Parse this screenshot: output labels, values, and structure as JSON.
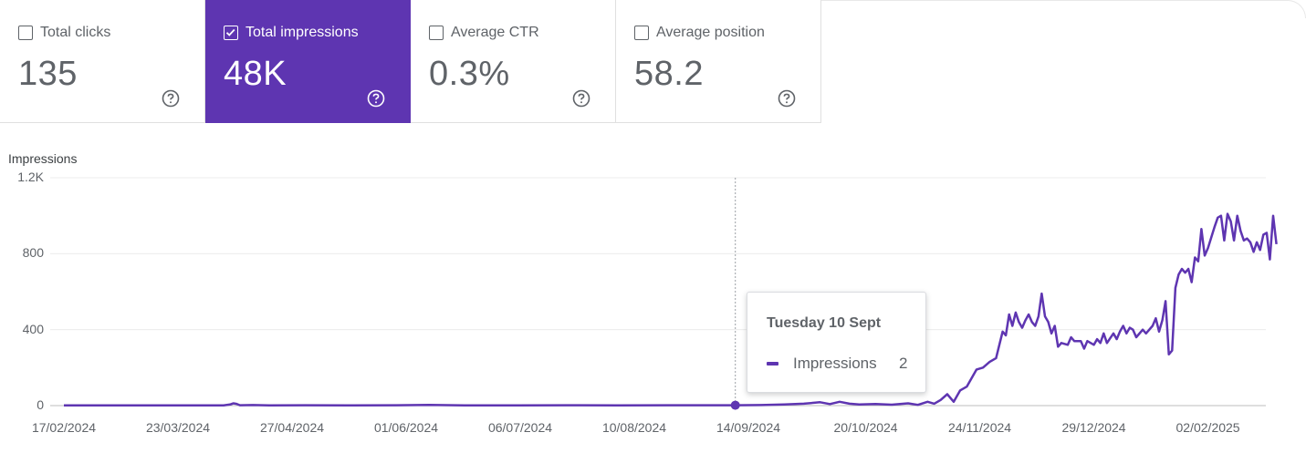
{
  "metrics": [
    {
      "label": "Total clicks",
      "value": "135",
      "checked": false
    },
    {
      "label": "Total impressions",
      "value": "48K",
      "checked": true
    },
    {
      "label": "Average CTR",
      "value": "0.3%",
      "checked": false
    },
    {
      "label": "Average position",
      "value": "58.2",
      "checked": false
    }
  ],
  "icons": {
    "checkbox": "checkbox-icon",
    "checked": "check-icon",
    "help": "help-circle-icon"
  },
  "colors": {
    "accent": "#5e35b1",
    "text": "#5f6368",
    "grid": "#e8e8e8"
  },
  "tooltip": {
    "date": "Tuesday 10 Sept",
    "series": "Impressions",
    "value": "2"
  },
  "chart_data": {
    "type": "line",
    "ylabel": "Impressions",
    "ylim": [
      0,
      1200
    ],
    "yticks": [
      "0",
      "400",
      "800",
      "1.2K"
    ],
    "xticks": [
      "17/02/2024",
      "23/03/2024",
      "27/04/2024",
      "01/06/2024",
      "06/07/2024",
      "10/08/2024",
      "14/09/2024",
      "20/10/2024",
      "24/11/2024",
      "29/12/2024",
      "02/02/2025"
    ],
    "grid": true,
    "start_date": "17/02/2024",
    "highlight_date": "10/09/2024",
    "series": [
      {
        "name": "Impressions",
        "points": [
          [
            "17/02/2024",
            1
          ],
          [
            "01/03/2024",
            1
          ],
          [
            "15/03/2024",
            1
          ],
          [
            "29/03/2024",
            1
          ],
          [
            "06/04/2024",
            1
          ],
          [
            "08/04/2024",
            6
          ],
          [
            "09/04/2024",
            12
          ],
          [
            "10/04/2024",
            9
          ],
          [
            "11/04/2024",
            2
          ],
          [
            "15/04/2024",
            3
          ],
          [
            "20/04/2024",
            1
          ],
          [
            "01/05/2024",
            2
          ],
          [
            "15/05/2024",
            1
          ],
          [
            "29/05/2024",
            2
          ],
          [
            "08/06/2024",
            4
          ],
          [
            "20/06/2024",
            1
          ],
          [
            "05/07/2024",
            1
          ],
          [
            "20/07/2024",
            2
          ],
          [
            "05/08/2024",
            1
          ],
          [
            "20/08/2024",
            2
          ],
          [
            "01/09/2024",
            2
          ],
          [
            "10/09/2024",
            2
          ],
          [
            "18/09/2024",
            3
          ],
          [
            "25/09/2024",
            6
          ],
          [
            "01/10/2024",
            10
          ],
          [
            "06/10/2024",
            18
          ],
          [
            "09/10/2024",
            8
          ],
          [
            "12/10/2024",
            20
          ],
          [
            "15/10/2024",
            10
          ],
          [
            "18/10/2024",
            6
          ],
          [
            "23/10/2024",
            8
          ],
          [
            "28/10/2024",
            5
          ],
          [
            "02/11/2024",
            12
          ],
          [
            "05/11/2024",
            4
          ],
          [
            "08/11/2024",
            20
          ],
          [
            "10/11/2024",
            10
          ],
          [
            "12/11/2024",
            30
          ],
          [
            "14/11/2024",
            60
          ],
          [
            "16/11/2024",
            20
          ],
          [
            "18/11/2024",
            80
          ],
          [
            "20/11/2024",
            100
          ],
          [
            "23/11/2024",
            190
          ],
          [
            "25/11/2024",
            200
          ],
          [
            "27/11/2024",
            230
          ],
          [
            "29/11/2024",
            250
          ],
          [
            "01/12/2024",
            390
          ],
          [
            "02/12/2024",
            370
          ],
          [
            "03/12/2024",
            480
          ],
          [
            "04/12/2024",
            420
          ],
          [
            "05/12/2024",
            490
          ],
          [
            "06/12/2024",
            440
          ],
          [
            "07/12/2024",
            410
          ],
          [
            "08/12/2024",
            450
          ],
          [
            "09/12/2024",
            480
          ],
          [
            "10/12/2024",
            440
          ],
          [
            "11/12/2024",
            420
          ],
          [
            "12/12/2024",
            470
          ],
          [
            "13/12/2024",
            590
          ],
          [
            "14/12/2024",
            470
          ],
          [
            "15/12/2024",
            440
          ],
          [
            "16/12/2024",
            380
          ],
          [
            "17/12/2024",
            420
          ],
          [
            "18/12/2024",
            310
          ],
          [
            "19/12/2024",
            330
          ],
          [
            "21/12/2024",
            320
          ],
          [
            "22/12/2024",
            360
          ],
          [
            "23/12/2024",
            340
          ],
          [
            "25/12/2024",
            340
          ],
          [
            "26/12/2024",
            300
          ],
          [
            "27/12/2024",
            340
          ],
          [
            "29/12/2024",
            320
          ],
          [
            "30/12/2024",
            350
          ],
          [
            "31/12/2024",
            330
          ],
          [
            "01/01/2025",
            380
          ],
          [
            "02/01/2025",
            330
          ],
          [
            "04/01/2025",
            380
          ],
          [
            "05/01/2025",
            350
          ],
          [
            "06/01/2025",
            390
          ],
          [
            "07/01/2025",
            420
          ],
          [
            "08/01/2025",
            380
          ],
          [
            "09/01/2025",
            410
          ],
          [
            "10/01/2025",
            400
          ],
          [
            "11/01/2025",
            360
          ],
          [
            "13/01/2025",
            400
          ],
          [
            "14/01/2025",
            380
          ],
          [
            "16/01/2025",
            420
          ],
          [
            "17/01/2025",
            460
          ],
          [
            "18/01/2025",
            390
          ],
          [
            "19/01/2025",
            450
          ],
          [
            "20/01/2025",
            550
          ],
          [
            "21/01/2025",
            270
          ],
          [
            "22/01/2025",
            290
          ],
          [
            "23/01/2025",
            620
          ],
          [
            "24/01/2025",
            690
          ],
          [
            "25/01/2025",
            720
          ],
          [
            "26/01/2025",
            700
          ],
          [
            "27/01/2025",
            720
          ],
          [
            "28/01/2025",
            650
          ],
          [
            "29/01/2025",
            780
          ],
          [
            "30/01/2025",
            760
          ],
          [
            "31/01/2025",
            930
          ],
          [
            "01/02/2025",
            790
          ],
          [
            "02/02/2025",
            830
          ],
          [
            "04/02/2025",
            940
          ],
          [
            "05/02/2025",
            990
          ],
          [
            "06/02/2025",
            1000
          ],
          [
            "07/02/2025",
            870
          ],
          [
            "08/02/2025",
            1010
          ],
          [
            "09/02/2025",
            970
          ],
          [
            "10/02/2025",
            870
          ],
          [
            "11/02/2025",
            1000
          ],
          [
            "12/02/2025",
            920
          ],
          [
            "13/02/2025",
            870
          ],
          [
            "14/02/2025",
            880
          ],
          [
            "15/02/2025",
            860
          ],
          [
            "16/02/2025",
            810
          ],
          [
            "17/02/2025",
            860
          ],
          [
            "18/02/2025",
            820
          ],
          [
            "19/02/2025",
            900
          ],
          [
            "20/02/2025",
            910
          ],
          [
            "21/02/2025",
            770
          ],
          [
            "22/02/2025",
            1000
          ],
          [
            "23/02/2025",
            850
          ]
        ]
      }
    ]
  }
}
